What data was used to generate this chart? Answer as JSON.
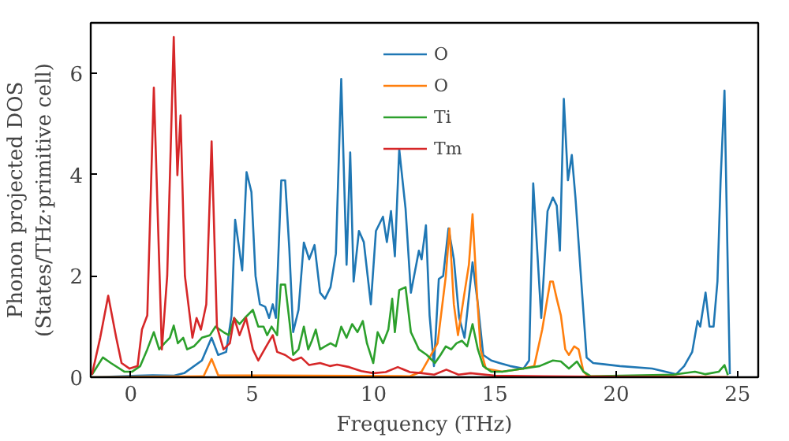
{
  "chart_data": {
    "type": "line",
    "xlabel": "Frequency (THz)",
    "ylabel": "Phonon projected DOS\n(States/THz·primitive cell)",
    "xlim": [
      -1.65,
      25.85
    ],
    "ylim": [
      0,
      7
    ],
    "xticks": [
      0,
      5,
      10,
      15,
      20,
      25
    ],
    "yticks": [
      0,
      2,
      4,
      6
    ],
    "legend": "top",
    "grid": false,
    "series": [
      {
        "name": "O",
        "color": "#1f77b4",
        "x": [
          -1.6,
          0.3,
          0.9,
          1.78,
          2.2,
          2.93,
          3.33,
          3.6,
          3.93,
          4.15,
          4.3,
          4.59,
          4.77,
          4.97,
          5.14,
          5.32,
          5.54,
          5.7,
          5.85,
          5.98,
          6.2,
          6.36,
          6.53,
          6.69,
          6.91,
          7.13,
          7.35,
          7.57,
          7.8,
          8.0,
          8.23,
          8.45,
          8.67,
          8.89,
          9.04,
          9.18,
          9.4,
          9.6,
          9.89,
          10.1,
          10.39,
          10.55,
          10.72,
          10.88,
          11.06,
          11.32,
          11.54,
          11.87,
          11.98,
          12.16,
          12.31,
          12.49,
          12.69,
          12.87,
          13.09,
          13.31,
          13.53,
          13.75,
          14.08,
          14.3,
          14.52,
          14.85,
          15.19,
          15.63,
          16.18,
          16.41,
          16.58,
          16.91,
          17.17,
          17.39,
          17.55,
          17.68,
          17.84,
          18.01,
          18.17,
          18.32,
          18.56,
          18.78,
          19.05,
          20.15,
          21.48,
          22.03,
          22.47,
          22.8,
          23.13,
          23.35,
          23.46,
          23.68,
          23.84,
          24.01,
          24.17,
          24.3,
          24.46,
          24.57,
          24.68
        ],
        "values": [
          0,
          0.03,
          0.04,
          0.03,
          0.08,
          0.33,
          0.78,
          0.44,
          0.5,
          1.22,
          3.11,
          2.11,
          4.05,
          3.66,
          2.0,
          1.44,
          1.39,
          1.17,
          1.44,
          1.17,
          3.89,
          3.89,
          2.55,
          0.89,
          1.33,
          2.66,
          2.33,
          2.61,
          1.67,
          1.55,
          1.78,
          2.44,
          5.89,
          2.22,
          4.44,
          1.89,
          2.89,
          2.67,
          1.44,
          2.89,
          3.17,
          2.67,
          3.28,
          2.39,
          4.5,
          3.33,
          1.67,
          2.5,
          2.33,
          3.0,
          1.22,
          0.22,
          1.94,
          2.0,
          2.94,
          2.33,
          1.17,
          0.78,
          2.27,
          1.44,
          0.44,
          0.33,
          0.28,
          0.22,
          0.17,
          0.33,
          3.83,
          1.17,
          3.28,
          3.55,
          3.39,
          2.5,
          5.5,
          3.89,
          4.39,
          3.55,
          1.89,
          0.39,
          0.28,
          0.22,
          0.17,
          0.11,
          0.06,
          0.22,
          0.5,
          1.11,
          1.0,
          1.67,
          1.0,
          1.0,
          1.89,
          3.89,
          5.66,
          2.78,
          0.06
        ]
      },
      {
        "name": "O",
        "color": "#ff7f0e",
        "x": [
          -1.6,
          3.0,
          3.33,
          3.6,
          11.5,
          11.98,
          12.31,
          12.64,
          12.98,
          13.13,
          13.31,
          13.48,
          13.75,
          13.93,
          14.08,
          14.26,
          14.41,
          14.63,
          15.3,
          16.18,
          16.62,
          16.95,
          17.28,
          17.39,
          17.55,
          17.72,
          17.9,
          18.05,
          18.27,
          18.45,
          18.65,
          18.83,
          24.6
        ],
        "values": [
          0,
          0.02,
          0.36,
          0.04,
          0.02,
          0.11,
          0.39,
          0.67,
          2.0,
          2.94,
          1.44,
          0.83,
          1.67,
          2.22,
          3.22,
          1.67,
          0.55,
          0.17,
          0.11,
          0.17,
          0.22,
          0.94,
          1.89,
          1.89,
          1.55,
          1.22,
          0.55,
          0.44,
          0.61,
          0.55,
          0.11,
          0.02,
          0
        ]
      },
      {
        "name": "Ti",
        "color": "#2ca02c",
        "x": [
          -1.6,
          -1.15,
          -0.82,
          -0.27,
          0.06,
          0.39,
          0.68,
          0.95,
          1.17,
          1.39,
          1.61,
          1.77,
          1.94,
          2.16,
          2.32,
          2.6,
          2.93,
          3.26,
          3.49,
          3.82,
          4.04,
          4.26,
          4.48,
          4.7,
          5.03,
          5.25,
          5.47,
          5.62,
          5.8,
          6.03,
          6.18,
          6.36,
          6.51,
          6.69,
          6.91,
          7.13,
          7.31,
          7.46,
          7.62,
          7.8,
          8.0,
          8.23,
          8.45,
          8.67,
          8.89,
          9.12,
          9.34,
          9.56,
          9.73,
          9.99,
          10.17,
          10.39,
          10.61,
          10.77,
          10.88,
          11.06,
          11.32,
          11.54,
          11.87,
          12.2,
          12.53,
          12.76,
          12.98,
          13.2,
          13.42,
          13.64,
          13.86,
          14.08,
          14.3,
          14.52,
          14.85,
          15.3,
          16.18,
          16.84,
          17.39,
          17.72,
          18.05,
          18.38,
          18.65,
          18.94,
          22.36,
          23.24,
          23.68,
          24.23,
          24.46,
          24.6
        ],
        "values": [
          0.05,
          0.39,
          0.28,
          0.11,
          0.11,
          0.22,
          0.55,
          0.89,
          0.55,
          0.67,
          0.78,
          1.02,
          0.67,
          0.78,
          0.55,
          0.61,
          0.78,
          0.83,
          1.0,
          0.89,
          0.83,
          1.17,
          1.05,
          1.17,
          1.33,
          1.0,
          1.0,
          0.83,
          1.0,
          0.83,
          1.83,
          1.83,
          1.22,
          0.44,
          0.55,
          1.0,
          0.55,
          0.72,
          0.94,
          0.55,
          0.61,
          0.67,
          0.61,
          1.0,
          0.78,
          1.05,
          0.89,
          1.11,
          0.67,
          0.28,
          0.89,
          0.67,
          0.94,
          1.55,
          0.89,
          1.72,
          1.78,
          0.89,
          0.55,
          0.44,
          0.28,
          0.44,
          0.61,
          0.55,
          0.67,
          0.72,
          0.61,
          1.05,
          0.55,
          0.22,
          0.11,
          0.11,
          0.17,
          0.22,
          0.33,
          0.31,
          0.17,
          0.31,
          0.11,
          0.02,
          0.05,
          0.11,
          0.06,
          0.11,
          0.24,
          0.04
        ]
      },
      {
        "name": "Tm",
        "color": "#d62728",
        "x": [
          -1.6,
          -1.26,
          -0.93,
          -0.6,
          -0.38,
          -0.05,
          0.28,
          0.46,
          0.68,
          0.95,
          1.28,
          1.5,
          1.77,
          1.92,
          2.05,
          2.23,
          2.54,
          2.71,
          2.89,
          3.11,
          3.33,
          3.55,
          3.82,
          4.08,
          4.26,
          4.48,
          4.75,
          5.03,
          5.25,
          5.58,
          5.85,
          6.03,
          6.36,
          6.69,
          7.02,
          7.35,
          7.8,
          8.2,
          8.5,
          9.0,
          9.5,
          10.0,
          10.5,
          11.0,
          11.5,
          12.0,
          12.5,
          13.0,
          13.5,
          14.0,
          15.0,
          17.0,
          19.0,
          24.6
        ],
        "values": [
          0.05,
          0.78,
          1.61,
          0.78,
          0.28,
          0.17,
          0.22,
          0.94,
          1.22,
          5.72,
          0.55,
          2.0,
          6.72,
          3.99,
          5.17,
          2.0,
          0.78,
          1.17,
          0.94,
          1.44,
          4.66,
          1.0,
          0.55,
          0.67,
          1.17,
          0.83,
          1.17,
          0.55,
          0.33,
          0.61,
          0.83,
          0.5,
          0.44,
          0.33,
          0.39,
          0.24,
          0.28,
          0.22,
          0.25,
          0.2,
          0.12,
          0.08,
          0.1,
          0.2,
          0.1,
          0.08,
          0.05,
          0.15,
          0.05,
          0.08,
          0.03,
          0.02,
          0.01,
          0
        ]
      }
    ]
  }
}
